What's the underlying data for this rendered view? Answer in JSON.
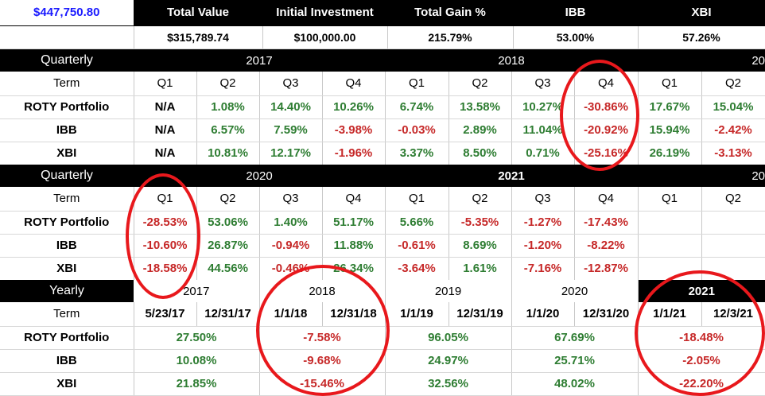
{
  "summary": {
    "portfolio_value": "$447,750.80",
    "headers": [
      "Total Value",
      "Initial Investment",
      "Total Gain %",
      "IBB",
      "XBI"
    ],
    "values": [
      "$315,789.74",
      "$100,000.00",
      "215.79%",
      "53.00%",
      "57.26%"
    ]
  },
  "q1": {
    "section_label": "Quarterly",
    "year_a": "2017",
    "year_b": "2018",
    "year_c": "20",
    "term_label": "Term",
    "quarters": [
      "Q1",
      "Q2",
      "Q3",
      "Q4",
      "Q1",
      "Q2",
      "Q3",
      "Q4",
      "Q1",
      "Q2"
    ],
    "rows": [
      {
        "label": "ROTY Portfolio",
        "values": [
          "N/A",
          "1.08%",
          "14.40%",
          "10.26%",
          "6.74%",
          "13.58%",
          "10.27%",
          "-30.86%",
          "17.67%",
          "15.04%"
        ]
      },
      {
        "label": "IBB",
        "values": [
          "N/A",
          "6.57%",
          "7.59%",
          "-3.98%",
          "-0.03%",
          "2.89%",
          "11.04%",
          "-20.92%",
          "15.94%",
          "-2.42%"
        ]
      },
      {
        "label": "XBI",
        "values": [
          "N/A",
          "10.81%",
          "12.17%",
          "-1.96%",
          "3.37%",
          "8.50%",
          "0.71%",
          "-25.16%",
          "26.19%",
          "-3.13%"
        ]
      }
    ]
  },
  "q2": {
    "section_label": "Quarterly",
    "year_a": "2020",
    "year_b": "2021",
    "year_c": "20",
    "term_label": "Term",
    "quarters": [
      "Q1",
      "Q2",
      "Q3",
      "Q4",
      "Q1",
      "Q2",
      "Q3",
      "Q4",
      "Q1",
      "Q2"
    ],
    "rows": [
      {
        "label": "ROTY Portfolio",
        "values": [
          "-28.53%",
          "53.06%",
          "1.40%",
          "51.17%",
          "5.66%",
          "-5.35%",
          "-1.27%",
          "-17.43%",
          "",
          ""
        ]
      },
      {
        "label": "IBB",
        "values": [
          "-10.60%",
          "26.87%",
          "-0.94%",
          "11.88%",
          "-0.61%",
          "8.69%",
          "-1.20%",
          "-8.22%",
          "",
          ""
        ]
      },
      {
        "label": "XBI",
        "values": [
          "-18.58%",
          "44.56%",
          "-0.46%",
          "26.34%",
          "-3.64%",
          "1.61%",
          "-7.16%",
          "-12.87%",
          "",
          ""
        ]
      }
    ]
  },
  "yearly": {
    "section_label": "Yearly",
    "years": [
      "2017",
      "2018",
      "2019",
      "2020",
      "2021"
    ],
    "term_label": "Term",
    "dates": [
      "5/23/17",
      "12/31/17",
      "1/1/18",
      "12/31/18",
      "1/1/19",
      "12/31/19",
      "1/1/20",
      "12/31/20",
      "1/1/21",
      "12/3/21"
    ],
    "rows": [
      {
        "label": "ROTY Portfolio",
        "values": [
          "27.50%",
          "-7.58%",
          "96.05%",
          "67.69%",
          "-18.48%"
        ]
      },
      {
        "label": "IBB",
        "values": [
          "10.08%",
          "-9.68%",
          "24.97%",
          "25.71%",
          "-2.05%"
        ]
      },
      {
        "label": "XBI",
        "values": [
          "21.85%",
          "-15.46%",
          "32.56%",
          "48.02%",
          "-22.20%"
        ]
      }
    ]
  },
  "colors": {
    "positive": "#2e7d32",
    "negative": "#c62828",
    "highlight_circle": "#e8181c",
    "header_bg": "#000000"
  }
}
